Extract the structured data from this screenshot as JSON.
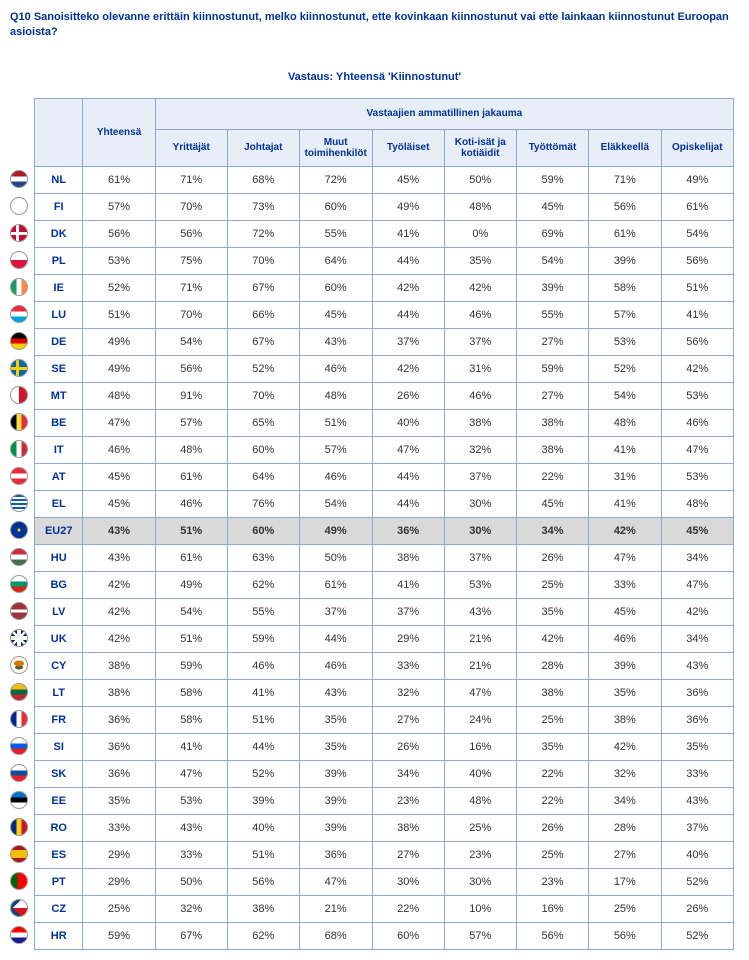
{
  "question": "Q10 Sanoisitteko olevanne erittäin kiinnostunut, melko kiinnostunut, ette kovinkaan kiinnostunut vai ette lainkaan kiinnostunut Euroopan asioista?",
  "answer_title": "Vastaus: Yhteensä 'Kiinnostunut'",
  "headers": {
    "total": "Yhteensä",
    "group": "Vastaajien ammatillinen jakauma",
    "cols": [
      "Yrittäjät",
      "Johtajat",
      "Muut toimihenkilöt",
      "Työläiset",
      "Koti-isät ja kotiäidit",
      "Työttömät",
      "Eläkkeellä",
      "Opiskelijat"
    ]
  },
  "flag_colors": {
    "NL": {
      "bg": "linear-gradient(#AE1C28 33%, #fff 33% 66%, #21468B 66%)"
    },
    "FI": {
      "bg": "#fff",
      "extra": "cross-fi"
    },
    "DK": {
      "bg": "#C60C30",
      "extra": "cross-dk"
    },
    "PL": {
      "bg": "linear-gradient(#fff 50%, #DC143C 50%)"
    },
    "IE": {
      "bg": "linear-gradient(90deg,#169B62 33%,#fff 33% 66%,#FF883E 66%)"
    },
    "LU": {
      "bg": "linear-gradient(#ED2939 33%,#fff 33% 66%,#00A1DE 66%)"
    },
    "DE": {
      "bg": "linear-gradient(#000 33%,#DD0000 33% 66%,#FFCE00 66%)"
    },
    "SE": {
      "bg": "#006AA7",
      "extra": "cross-se"
    },
    "MT": {
      "bg": "linear-gradient(90deg,#fff 50%,#CF142B 50%)"
    },
    "BE": {
      "bg": "linear-gradient(90deg,#000 33%,#FAE042 33% 66%,#ED2939 66%)"
    },
    "IT": {
      "bg": "linear-gradient(90deg,#009246 33%,#fff 33% 66%,#CE2B37 66%)"
    },
    "AT": {
      "bg": "linear-gradient(#ED2939 33%,#fff 33% 66%,#ED2939 66%)"
    },
    "EL": {
      "bg": "repeating-linear-gradient(#0D5EAF 0 2px,#fff 2px 4px)"
    },
    "EU27": {
      "bg": "radial-gradient(circle,#FFCC00 1px,#003399 2px)"
    },
    "HU": {
      "bg": "linear-gradient(#CD2A3E 33%,#fff 33% 66%,#436F4D 66%)"
    },
    "BG": {
      "bg": "linear-gradient(#fff 33%,#00966E 33% 66%,#D62612 66%)"
    },
    "LV": {
      "bg": "linear-gradient(#9E3039 40%,#fff 40% 60%,#9E3039 60%)"
    },
    "UK": {
      "bg": "#012169",
      "extra": "uk"
    },
    "CY": {
      "bg": "#fff",
      "extra": "cy"
    },
    "LT": {
      "bg": "linear-gradient(#FDB913 33%,#006A44 33% 66%,#C1272D 66%)"
    },
    "FR": {
      "bg": "linear-gradient(90deg,#002395 33%,#fff 33% 66%,#ED2939 66%)"
    },
    "SI": {
      "bg": "linear-gradient(#fff 33%,#005CE6 33% 66%,#ED1C24 66%)"
    },
    "SK": {
      "bg": "linear-gradient(#fff 33%,#0B4EA2 33% 66%,#EE1C25 66%)"
    },
    "EE": {
      "bg": "linear-gradient(#0072CE 33%,#000 33% 66%,#fff 66%)"
    },
    "RO": {
      "bg": "linear-gradient(90deg,#002B7F 33%,#FCD116 33% 66%,#CE1126 66%)"
    },
    "ES": {
      "bg": "linear-gradient(#AA151B 25%,#F1BF00 25% 75%,#AA151B 75%)"
    },
    "PT": {
      "bg": "linear-gradient(90deg,#006600 40%,#FF0000 40%)"
    },
    "CZ": {
      "bg": "linear-gradient(#fff 50%,#D7141A 50%)",
      "extra": "cz"
    },
    "HR": {
      "bg": "linear-gradient(#FF0000 33%,#fff 33% 66%,#171796 66%)"
    }
  },
  "rows": [
    {
      "code": "NL",
      "total": "61%",
      "v": [
        "71%",
        "68%",
        "72%",
        "45%",
        "50%",
        "59%",
        "71%",
        "49%"
      ]
    },
    {
      "code": "FI",
      "total": "57%",
      "v": [
        "70%",
        "73%",
        "60%",
        "49%",
        "48%",
        "45%",
        "56%",
        "61%"
      ]
    },
    {
      "code": "DK",
      "total": "56%",
      "v": [
        "56%",
        "72%",
        "55%",
        "41%",
        "0%",
        "69%",
        "61%",
        "54%"
      ]
    },
    {
      "code": "PL",
      "total": "53%",
      "v": [
        "75%",
        "70%",
        "64%",
        "44%",
        "35%",
        "54%",
        "39%",
        "56%"
      ]
    },
    {
      "code": "IE",
      "total": "52%",
      "v": [
        "71%",
        "67%",
        "60%",
        "42%",
        "42%",
        "39%",
        "58%",
        "51%"
      ]
    },
    {
      "code": "LU",
      "total": "51%",
      "v": [
        "70%",
        "66%",
        "45%",
        "44%",
        "46%",
        "55%",
        "57%",
        "41%"
      ]
    },
    {
      "code": "DE",
      "total": "49%",
      "v": [
        "54%",
        "67%",
        "43%",
        "37%",
        "37%",
        "27%",
        "53%",
        "56%"
      ]
    },
    {
      "code": "SE",
      "total": "49%",
      "v": [
        "56%",
        "52%",
        "46%",
        "42%",
        "31%",
        "59%",
        "52%",
        "42%"
      ]
    },
    {
      "code": "MT",
      "total": "48%",
      "v": [
        "91%",
        "70%",
        "48%",
        "26%",
        "46%",
        "27%",
        "54%",
        "53%"
      ]
    },
    {
      "code": "BE",
      "total": "47%",
      "v": [
        "57%",
        "65%",
        "51%",
        "40%",
        "38%",
        "38%",
        "48%",
        "46%"
      ]
    },
    {
      "code": "IT",
      "total": "46%",
      "v": [
        "48%",
        "60%",
        "57%",
        "47%",
        "32%",
        "38%",
        "41%",
        "47%"
      ]
    },
    {
      "code": "AT",
      "total": "45%",
      "v": [
        "61%",
        "64%",
        "46%",
        "44%",
        "37%",
        "22%",
        "31%",
        "53%"
      ]
    },
    {
      "code": "EL",
      "total": "45%",
      "v": [
        "46%",
        "76%",
        "54%",
        "44%",
        "30%",
        "45%",
        "41%",
        "48%"
      ]
    },
    {
      "code": "EU27",
      "total": "43%",
      "v": [
        "51%",
        "60%",
        "49%",
        "36%",
        "30%",
        "34%",
        "42%",
        "45%"
      ],
      "highlight": true
    },
    {
      "code": "HU",
      "total": "43%",
      "v": [
        "61%",
        "63%",
        "50%",
        "38%",
        "37%",
        "26%",
        "47%",
        "34%"
      ]
    },
    {
      "code": "BG",
      "total": "42%",
      "v": [
        "49%",
        "62%",
        "61%",
        "41%",
        "53%",
        "25%",
        "33%",
        "47%"
      ]
    },
    {
      "code": "LV",
      "total": "42%",
      "v": [
        "54%",
        "55%",
        "37%",
        "37%",
        "43%",
        "35%",
        "45%",
        "42%"
      ]
    },
    {
      "code": "UK",
      "total": "42%",
      "v": [
        "51%",
        "59%",
        "44%",
        "29%",
        "21%",
        "42%",
        "46%",
        "34%"
      ]
    },
    {
      "code": "CY",
      "total": "38%",
      "v": [
        "59%",
        "46%",
        "46%",
        "33%",
        "21%",
        "28%",
        "39%",
        "43%"
      ]
    },
    {
      "code": "LT",
      "total": "38%",
      "v": [
        "58%",
        "41%",
        "43%",
        "32%",
        "47%",
        "38%",
        "35%",
        "36%"
      ]
    },
    {
      "code": "FR",
      "total": "36%",
      "v": [
        "58%",
        "51%",
        "35%",
        "27%",
        "24%",
        "25%",
        "38%",
        "36%"
      ]
    },
    {
      "code": "SI",
      "total": "36%",
      "v": [
        "41%",
        "44%",
        "35%",
        "26%",
        "16%",
        "35%",
        "42%",
        "35%"
      ]
    },
    {
      "code": "SK",
      "total": "36%",
      "v": [
        "47%",
        "52%",
        "39%",
        "34%",
        "40%",
        "22%",
        "32%",
        "33%"
      ]
    },
    {
      "code": "EE",
      "total": "35%",
      "v": [
        "53%",
        "39%",
        "39%",
        "23%",
        "48%",
        "22%",
        "34%",
        "43%"
      ]
    },
    {
      "code": "RO",
      "total": "33%",
      "v": [
        "43%",
        "40%",
        "39%",
        "38%",
        "25%",
        "26%",
        "28%",
        "37%"
      ]
    },
    {
      "code": "ES",
      "total": "29%",
      "v": [
        "33%",
        "51%",
        "36%",
        "27%",
        "23%",
        "25%",
        "27%",
        "40%"
      ]
    },
    {
      "code": "PT",
      "total": "29%",
      "v": [
        "50%",
        "56%",
        "47%",
        "30%",
        "30%",
        "23%",
        "17%",
        "52%"
      ]
    },
    {
      "code": "CZ",
      "total": "25%",
      "v": [
        "32%",
        "38%",
        "21%",
        "22%",
        "10%",
        "16%",
        "25%",
        "26%"
      ]
    },
    {
      "code": "HR",
      "total": "59%",
      "v": [
        "67%",
        "62%",
        "68%",
        "60%",
        "57%",
        "56%",
        "56%",
        "52%"
      ]
    }
  ]
}
